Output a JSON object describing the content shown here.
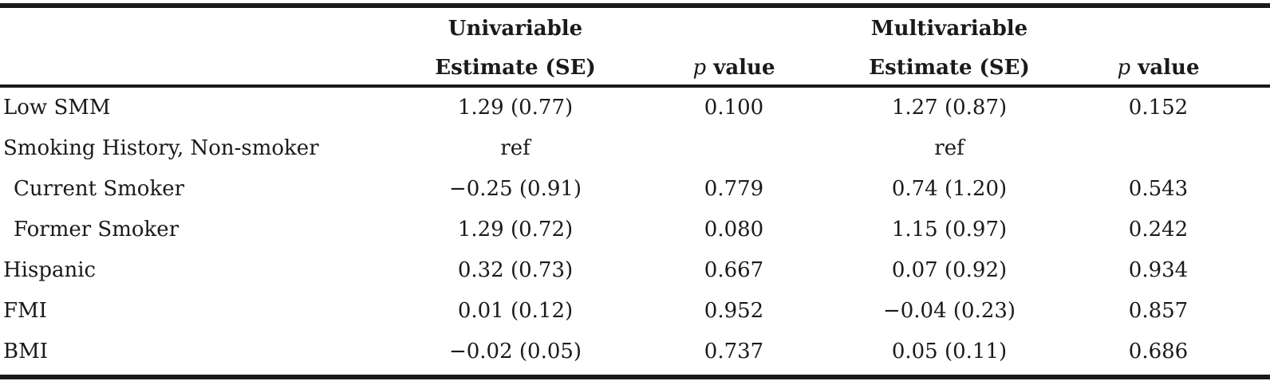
{
  "header": {
    "group_univariable": "Univariable",
    "group_multivariable": "Multivariable",
    "col_estimate_uni": "Estimate (SE)",
    "col_p_uni_italic": "p",
    "col_p_uni_rest": " value",
    "col_estimate_multi": "Estimate (SE)",
    "col_p_multi_italic": "p",
    "col_p_multi_rest": " value"
  },
  "rows": [
    {
      "label": "Low SMM",
      "uni_est": "1.29 (0.77)",
      "uni_p": "0.100",
      "multi_est": "1.27 (0.87)",
      "multi_p": "0.152"
    },
    {
      "label": "Smoking History, Non-smoker",
      "uni_est": "ref",
      "uni_p": "",
      "multi_est": "ref",
      "multi_p": ""
    },
    {
      "label": "Current Smoker",
      "uni_est": "−0.25 (0.91)",
      "uni_p": "0.779",
      "multi_est": "0.74 (1.20)",
      "multi_p": "0.543"
    },
    {
      "label": "Former Smoker",
      "uni_est": "1.29 (0.72)",
      "uni_p": "0.080",
      "multi_est": "1.15 (0.97)",
      "multi_p": "0.242"
    },
    {
      "label": "Hispanic",
      "uni_est": "0.32 (0.73)",
      "uni_p": "0.667",
      "multi_est": "0.07 (0.92)",
      "multi_p": "0.934"
    },
    {
      "label": "FMI",
      "uni_est": "0.01 (0.12)",
      "uni_p": "0.952",
      "multi_est": "−0.04 (0.23)",
      "multi_p": "0.857"
    },
    {
      "label": "BMI",
      "uni_est": "−0.02 (0.05)",
      "uni_p": "0.737",
      "multi_est": "0.05 (0.11)",
      "multi_p": "0.686"
    }
  ]
}
